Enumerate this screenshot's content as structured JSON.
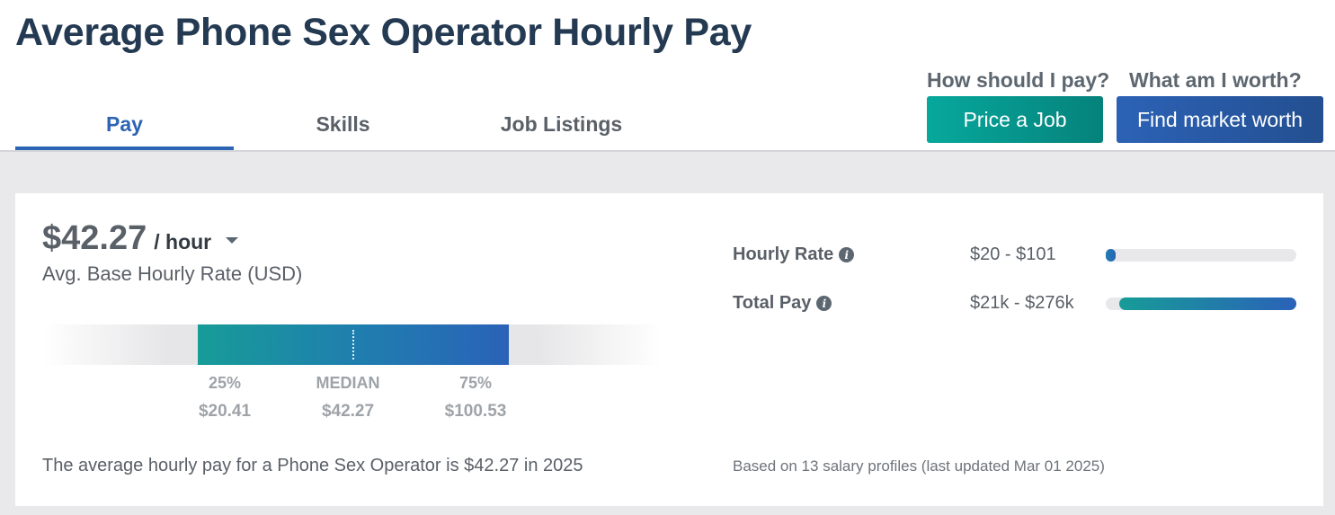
{
  "header": {
    "title": "Average Phone Sex Operator Hourly Pay"
  },
  "tabs": [
    {
      "label": "Pay",
      "active": true
    },
    {
      "label": "Skills",
      "active": false
    },
    {
      "label": "Job Listings",
      "active": false
    }
  ],
  "cta": {
    "price_question": "How should I pay?",
    "price_button": "Price a Job",
    "worth_question": "What am I worth?",
    "worth_button": "Find market worth"
  },
  "summary_card": {
    "rate_value": "$42.27",
    "rate_unit": "/ hour",
    "rate_caption": "Avg. Base Hourly Rate (USD)",
    "percentiles": {
      "p25_label": "25%",
      "p25_value": "$20.41",
      "median_label": "MEDIAN",
      "median_value": "$42.27",
      "p75_label": "75%",
      "p75_value": "$100.53"
    },
    "summary_text": "The average hourly pay for a Phone Sex Operator is $42.27 in 2025"
  },
  "stats": [
    {
      "label": "Hourly Rate",
      "range": "$20 - $101",
      "fill_start": 0.0,
      "fill_end": 0.05,
      "color_from": "#1f7fae",
      "color_to": "#2a62b8"
    },
    {
      "label": "Total Pay",
      "range": "$21k - $276k",
      "fill_start": 0.07,
      "fill_end": 1.0,
      "color_from": "#179c98",
      "color_to": "#2a62b8"
    }
  ],
  "footer_note": "Based on 13 salary profiles (last updated Mar 01 2025)",
  "colors": {
    "brand_navy": "#243a52",
    "tab_active": "#2d64b3",
    "price_button": "#07a89d",
    "worth_button": "#2c62b6"
  },
  "icons": [
    "caret-down-icon",
    "info-icon"
  ]
}
